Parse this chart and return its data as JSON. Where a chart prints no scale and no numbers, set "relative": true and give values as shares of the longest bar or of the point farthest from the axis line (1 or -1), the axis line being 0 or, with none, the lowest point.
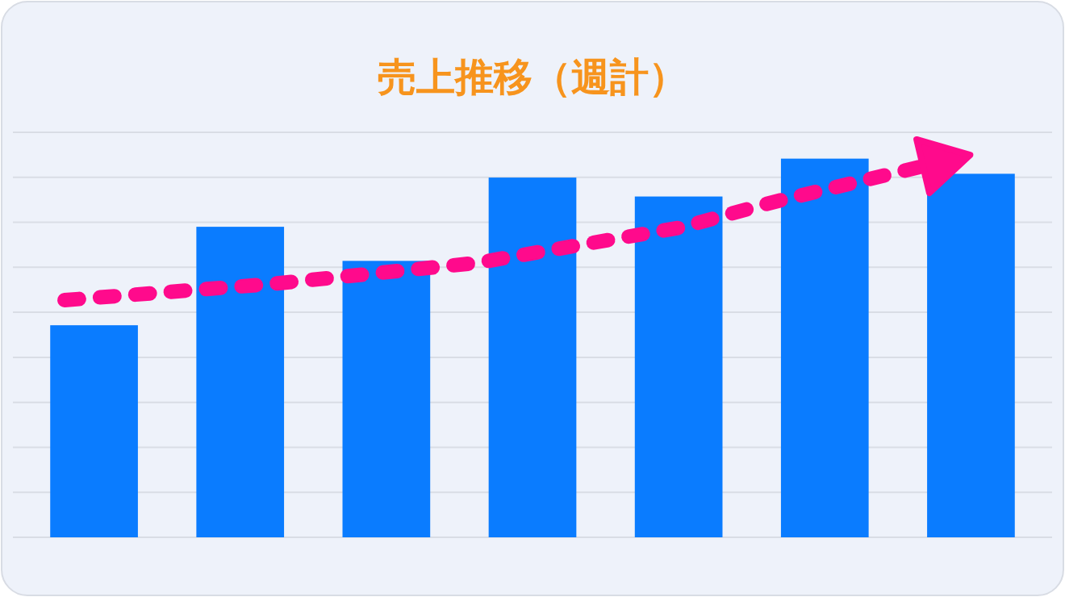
{
  "chart_data": {
    "type": "bar",
    "title": "売上推移（週計）",
    "relative": true,
    "grid": "y",
    "categories": [
      null,
      null,
      null,
      null,
      null,
      null,
      null
    ],
    "series": [
      {
        "color": "#0a7cff",
        "values": [
          0.56,
          0.82,
          0.73,
          0.95,
          0.9,
          1.0,
          0.96
        ]
      }
    ]
  }
}
